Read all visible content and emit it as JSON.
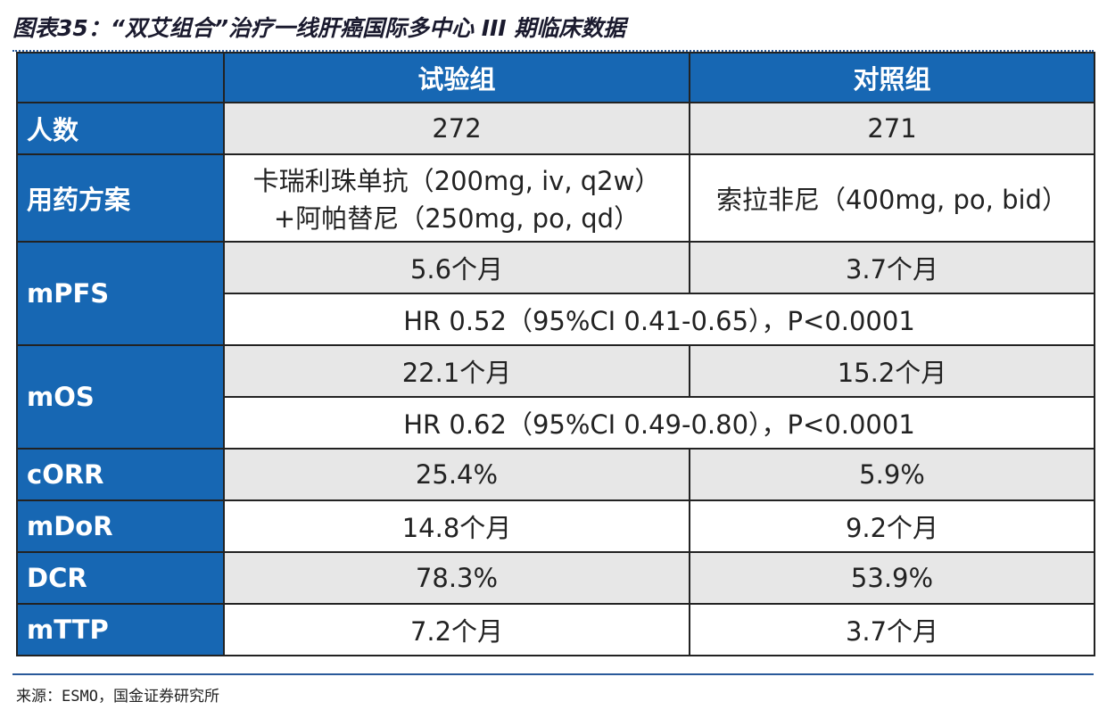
{
  "title": "图表35：“双艾组合”治疗一线肝癌国际多中心 III 期临床数据",
  "table": {
    "header": [
      "试验组",
      "对照组"
    ],
    "rows": [
      {
        "label": "人数",
        "values": [
          "272",
          "271"
        ]
      },
      {
        "label": "用药方案",
        "values": [
          [
            "卡瑞利珠单抗（200mg, iv, q2w）",
            "+阿帕替尼（250mg, po, qd）"
          ],
          "索拉非尼（400mg, po, bid）"
        ]
      },
      {
        "label": "mPFS",
        "values": [
          "5.6个月",
          "3.7个月"
        ],
        "hr": "HR 0.52（95%CI 0.41-0.65），P<0.0001"
      },
      {
        "label": "mOS",
        "values": [
          "22.1个月",
          "15.2个月"
        ],
        "hr": "HR 0.62（95%CI 0.49-0.80），P<0.0001"
      },
      {
        "label": "cORR",
        "values": [
          "25.4%",
          "5.9%"
        ]
      },
      {
        "label": "mDoR",
        "values": [
          "14.8个月",
          "9.2个月"
        ]
      },
      {
        "label": "DCR",
        "values": [
          "78.3%",
          "53.9%"
        ]
      },
      {
        "label": "mTTP",
        "values": [
          "7.2个月",
          "3.7个月"
        ]
      }
    ]
  },
  "source": "来源：ESMO，国金证券研究所"
}
